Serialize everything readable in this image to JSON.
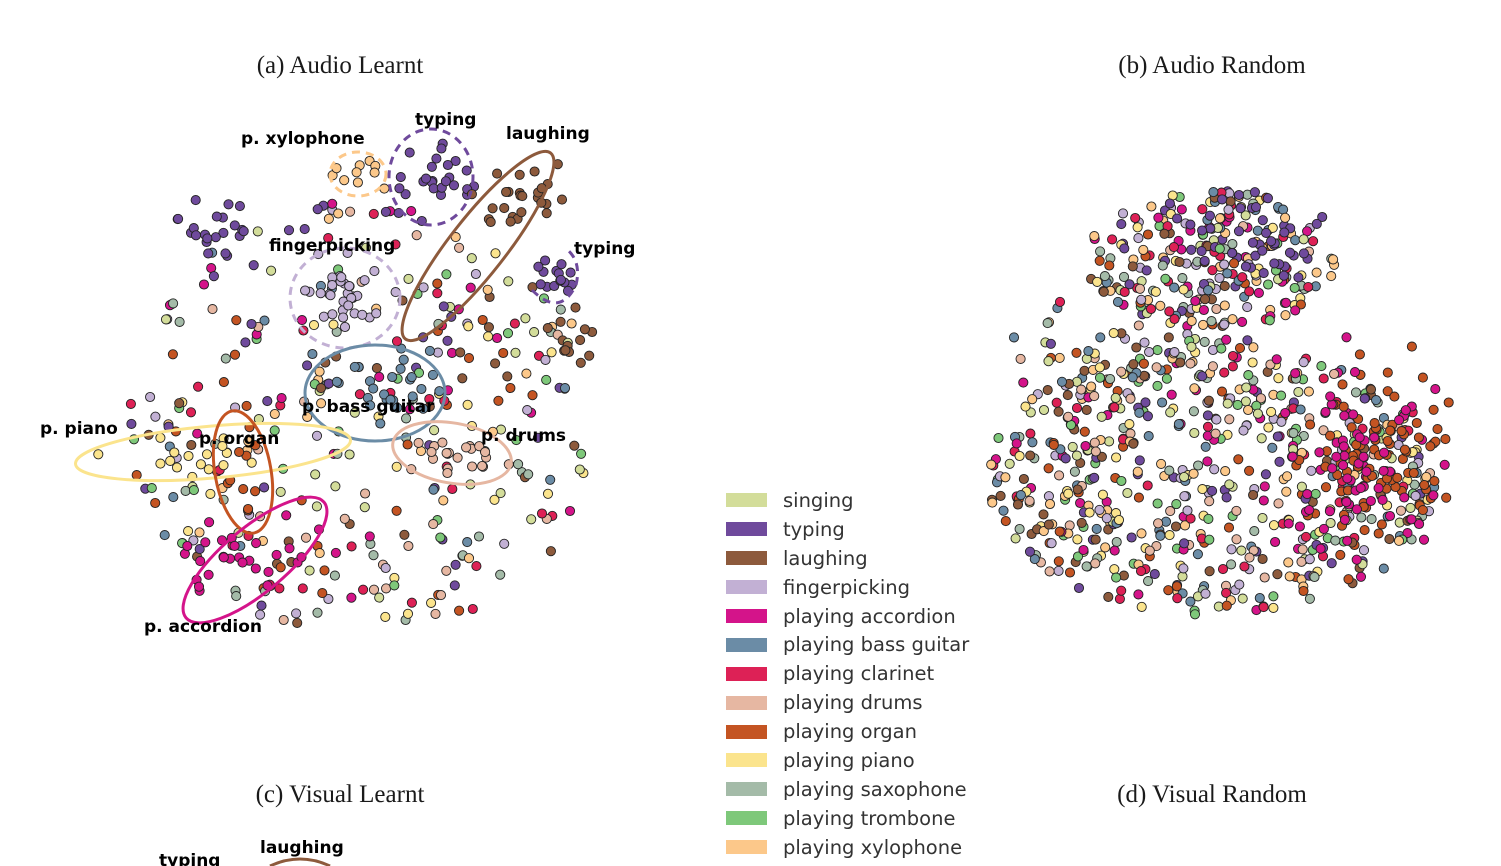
{
  "panels": {
    "a": {
      "title": "(a) Audio Learnt"
    },
    "b": {
      "title": "(b) Audio Random"
    },
    "c": {
      "title": "(c) Visual Learnt"
    },
    "d": {
      "title": "(d) Visual Random"
    }
  },
  "chart_data": [
    {
      "panel": "a",
      "type": "scatter",
      "title": "(a) Audio Learnt",
      "xlabel": "",
      "ylabel": "",
      "axes_visible": false,
      "grid": false,
      "cluster_annotations": [
        {
          "label": "p. xylophone",
          "class": "playing xylophone",
          "outline": "dashed-circle"
        },
        {
          "label": "typing",
          "class": "typing",
          "outline": "dashed-circle"
        },
        {
          "label": "laughing",
          "class": "laughing",
          "outline": "solid-ellipse"
        },
        {
          "label": "fingerpicking",
          "class": "fingerpicking",
          "outline": "dashed-circle"
        },
        {
          "label": "typing",
          "class": "typing",
          "outline": "dashed-arc"
        },
        {
          "label": "p. bass guitar",
          "class": "playing bass guitar",
          "outline": "solid-ellipse"
        },
        {
          "label": "p. piano",
          "class": "playing piano",
          "outline": "solid-ellipse"
        },
        {
          "label": "p. organ",
          "class": "playing organ",
          "outline": "solid-ellipse"
        },
        {
          "label": "p. drums",
          "class": "playing drums",
          "outline": "solid-ellipse"
        },
        {
          "label": "p. accordion",
          "class": "playing accordion",
          "outline": "solid-ellipse"
        }
      ]
    },
    {
      "panel": "b",
      "type": "scatter",
      "title": "(b) Audio Random",
      "xlabel": "",
      "ylabel": "",
      "axes_visible": false,
      "grid": false
    },
    {
      "panel": "c",
      "type": "scatter",
      "title": "(c) Visual Learnt",
      "xlabel": "",
      "ylabel": "",
      "axes_visible": false,
      "cluster_annotations": [
        {
          "label": "typing",
          "class": "typing"
        },
        {
          "label": "laughing",
          "class": "laughing"
        }
      ]
    },
    {
      "panel": "d",
      "type": "scatter",
      "title": "(d) Visual Random",
      "xlabel": "",
      "ylabel": "",
      "axes_visible": false
    }
  ],
  "legend": {
    "placement": "center",
    "items": [
      {
        "label": "singing",
        "color": "#d3dd9a"
      },
      {
        "label": "typing",
        "color": "#6f4a9c"
      },
      {
        "label": "laughing",
        "color": "#8d5a3c"
      },
      {
        "label": "fingerpicking",
        "color": "#c2b0d4"
      },
      {
        "label": "playing accordion",
        "color": "#d4148a"
      },
      {
        "label": "playing bass guitar",
        "color": "#6b8ca6"
      },
      {
        "label": "playing clarinet",
        "color": "#dd2156"
      },
      {
        "label": "playing drums",
        "color": "#e6b7a2"
      },
      {
        "label": "playing organ",
        "color": "#c45422"
      },
      {
        "label": "playing piano",
        "color": "#fbe48d"
      },
      {
        "label": "playing saxophone",
        "color": "#a4bba8"
      },
      {
        "label": "playing trombone",
        "color": "#7ec87a"
      },
      {
        "label": "playing xylophone",
        "color": "#fcc88a"
      }
    ]
  }
}
